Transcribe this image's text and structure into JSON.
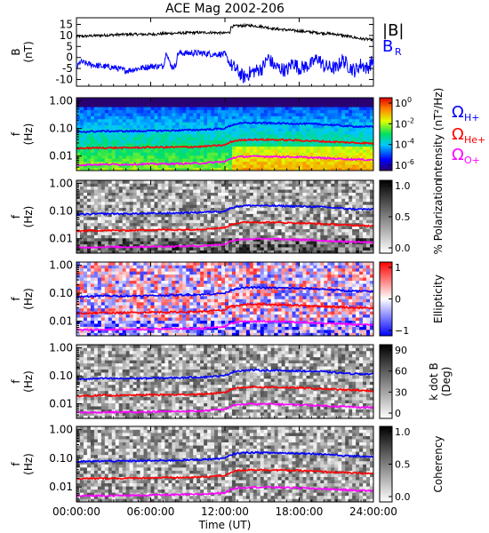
{
  "chart_data": {
    "title": "ACE Mag 2002-206",
    "xlabel": "Time (UT)",
    "x_ticks": [
      "00:00:00",
      "06:00:00",
      "12:00:00",
      "18:00:00",
      "24:00:00"
    ],
    "x_range_hours": [
      0,
      24
    ],
    "panels": [
      {
        "type": "line",
        "ylabel_lines": [
          "B",
          "(nT)"
        ],
        "ylim": [
          -13,
          18
        ],
        "y_ticks": [
          "15",
          "10",
          "5",
          "0",
          "-5",
          "-10"
        ],
        "legend": [
          "|B|",
          "BR"
        ],
        "series": [
          {
            "name": "|B|",
            "color": "#000000",
            "points": [
              [
                0,
                9.5
              ],
              [
                2,
                10
              ],
              [
                4,
                10.5
              ],
              [
                6,
                10.5
              ],
              [
                7,
                10.8
              ],
              [
                8,
                11
              ],
              [
                9,
                11.2
              ],
              [
                10,
                11.3
              ],
              [
                11,
                11.3
              ],
              [
                12,
                11
              ],
              [
                12.4,
                11.5
              ],
              [
                12.5,
                14
              ],
              [
                13,
                14.3
              ],
              [
                14,
                14.5
              ],
              [
                15,
                14
              ],
              [
                16,
                13
              ],
              [
                17,
                12.5
              ],
              [
                18,
                12
              ],
              [
                19,
                11.5
              ],
              [
                20,
                11
              ],
              [
                21,
                10.5
              ],
              [
                22,
                9.5
              ],
              [
                23,
                8.5
              ],
              [
                24,
                8
              ]
            ]
          },
          {
            "name": "BR",
            "color": "#0000ff",
            "points": [
              [
                0,
                -5
              ],
              [
                0.3,
                -2
              ],
              [
                1,
                -3
              ],
              [
                2,
                -4
              ],
              [
                3,
                -4.5
              ],
              [
                4,
                -6
              ],
              [
                5,
                -5
              ],
              [
                6,
                -4
              ],
              [
                7,
                -4
              ],
              [
                7.3,
                3
              ],
              [
                7.6,
                -4
              ],
              [
                8,
                -4
              ],
              [
                8.2,
                2
              ],
              [
                9,
                2
              ],
              [
                10,
                2
              ],
              [
                11,
                1.5
              ],
              [
                12,
                1.5
              ],
              [
                12.4,
                -3
              ],
              [
                13,
                -6
              ],
              [
                13.5,
                -9
              ],
              [
                14,
                -7
              ],
              [
                15,
                -5
              ],
              [
                15.5,
                0
              ],
              [
                16,
                -4
              ],
              [
                17,
                -6
              ],
              [
                17.5,
                -2
              ],
              [
                18,
                -5
              ],
              [
                19,
                -3
              ],
              [
                19.5,
                0
              ],
              [
                20,
                -4
              ],
              [
                21,
                -5
              ],
              [
                21.5,
                -1
              ],
              [
                22,
                -4
              ],
              [
                22.5,
                -6
              ],
              [
                23,
                -3
              ],
              [
                23.5,
                -5
              ],
              [
                24,
                -1
              ]
            ]
          }
        ]
      },
      {
        "type": "heatmap",
        "ylabel_lines": [
          "f",
          "(Hz)"
        ],
        "y_log_range": [
          0.003,
          1.3
        ],
        "y_ticks": [
          "1.00",
          "0.10",
          "0.01"
        ],
        "colorbar_title": "Intensity (nT²/Hz)",
        "colorbar_ticks": [
          "10^0",
          "10^-2",
          "10^-4",
          "10^-6"
        ],
        "colormap": "rainbow",
        "legend": [
          "ΩH+",
          "ΩHe+",
          "ΩO+"
        ]
      },
      {
        "type": "heatmap",
        "ylabel_lines": [
          "f",
          "(Hz)"
        ],
        "y_log_range": [
          0.003,
          1.3
        ],
        "y_ticks": [
          "1.00",
          "0.10",
          "0.01"
        ],
        "colorbar_title": "% Polarization",
        "colorbar_ticks": [
          "1.0",
          "0.5",
          "0.0"
        ],
        "colormap": "gray"
      },
      {
        "type": "heatmap",
        "ylabel_lines": [
          "f",
          "(Hz)"
        ],
        "y_log_range": [
          0.003,
          1.3
        ],
        "y_ticks": [
          "1.00",
          "0.10",
          "0.01"
        ],
        "colorbar_title": "Ellipticity",
        "colorbar_ticks": [
          "1",
          "0",
          "−1"
        ],
        "colormap": "bluewhitered"
      },
      {
        "type": "heatmap",
        "ylabel_lines": [
          "f",
          "(Hz)"
        ],
        "y_log_range": [
          0.003,
          1.3
        ],
        "y_ticks": [
          "1.00",
          "0.10",
          "0.01"
        ],
        "colorbar_title_lines": [
          "k dot B",
          "(Deg)"
        ],
        "colorbar_ticks": [
          "90",
          "60",
          "30",
          "0"
        ],
        "colormap": "gray"
      },
      {
        "type": "heatmap",
        "ylabel_lines": [
          "f",
          "(Hz)"
        ],
        "y_log_range": [
          0.003,
          1.3
        ],
        "y_ticks": [
          "1.00",
          "0.10",
          "0.01"
        ],
        "colorbar_title": "Coherency",
        "colorbar_ticks": [
          "1.0",
          "0.5",
          "0.0"
        ],
        "colormap": "gray"
      }
    ],
    "gyrofrequency_lines": [
      {
        "name": "ΩH+",
        "color": "#0000ff",
        "points": [
          [
            0,
            0.075
          ],
          [
            2,
            0.08
          ],
          [
            4,
            0.08
          ],
          [
            6,
            0.082
          ],
          [
            8,
            0.085
          ],
          [
            10,
            0.09
          ],
          [
            12,
            0.1
          ],
          [
            12.5,
            0.13
          ],
          [
            13,
            0.15
          ],
          [
            14,
            0.16
          ],
          [
            16,
            0.155
          ],
          [
            18,
            0.15
          ],
          [
            20,
            0.14
          ],
          [
            22,
            0.12
          ],
          [
            24,
            0.115
          ]
        ]
      },
      {
        "name": "ΩHe+",
        "color": "#ff0000",
        "points": [
          [
            0,
            0.019
          ],
          [
            2,
            0.02
          ],
          [
            4,
            0.02
          ],
          [
            6,
            0.021
          ],
          [
            8,
            0.021
          ],
          [
            10,
            0.022
          ],
          [
            12,
            0.025
          ],
          [
            12.5,
            0.033
          ],
          [
            13,
            0.037
          ],
          [
            14,
            0.04
          ],
          [
            16,
            0.039
          ],
          [
            18,
            0.037
          ],
          [
            20,
            0.034
          ],
          [
            22,
            0.031
          ],
          [
            24,
            0.029
          ]
        ]
      },
      {
        "name": "ΩO+",
        "color": "#ff00ff",
        "points": [
          [
            0,
            0.0048
          ],
          [
            2,
            0.005
          ],
          [
            4,
            0.005
          ],
          [
            6,
            0.0052
          ],
          [
            8,
            0.0053
          ],
          [
            10,
            0.0055
          ],
          [
            12,
            0.0063
          ],
          [
            12.5,
            0.0082
          ],
          [
            13,
            0.0093
          ],
          [
            14,
            0.0098
          ],
          [
            16,
            0.0097
          ],
          [
            18,
            0.0092
          ],
          [
            20,
            0.0085
          ],
          [
            22,
            0.0078
          ],
          [
            24,
            0.0073
          ]
        ]
      }
    ]
  }
}
